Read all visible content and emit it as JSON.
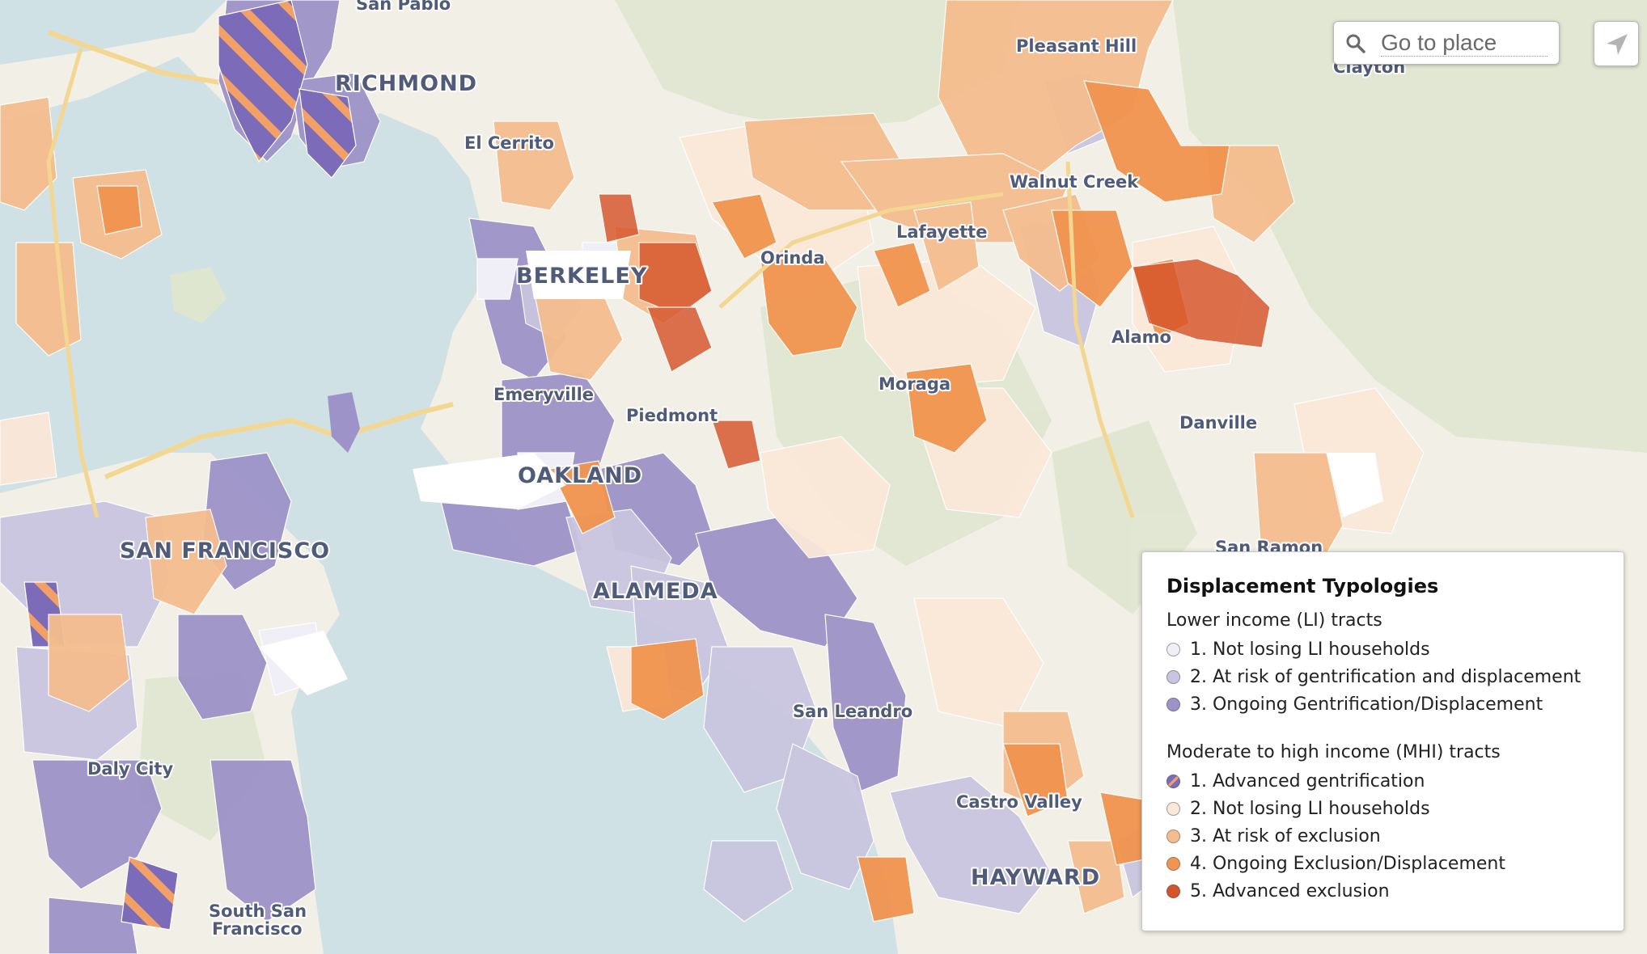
{
  "places": {
    "san_pablo": "San Pablo",
    "richmond": "RICHMOND",
    "el_cerrito": "El Cerrito",
    "berkeley": "BERKELEY",
    "emeryville": "Emeryville",
    "piedmont": "Piedmont",
    "oakland": "OAKLAND",
    "alameda": "ALAMEDA",
    "san_francisco": "SAN FRANCISCO",
    "daly_city": "Daly City",
    "south_san_francisco_line1": "South San",
    "south_san_francisco_line2": "Francisco",
    "san_leandro": "San Leandro",
    "castro_valley": "Castro Valley",
    "hayward": "HAYWARD",
    "orinda": "Orinda",
    "lafayette": "Lafayette",
    "moraga": "Moraga",
    "walnut_creek": "Walnut Creek",
    "pleasant_hill": "Pleasant Hill",
    "clayton": "Clayton",
    "alamo": "Alamo",
    "danville": "Danville",
    "san_ramon": "San Ramon"
  },
  "search": {
    "placeholder": "Go to place",
    "icon": "search-icon"
  },
  "locate_button": {
    "icon": "navigation-arrow-icon"
  },
  "legend": {
    "title": "Displacement Typologies",
    "groups": [
      {
        "title": "Lower income (LI) tracts",
        "items": [
          {
            "label": "1. Not losing LI households",
            "color": "#f0eef6"
          },
          {
            "label": "2. At risk of gentrification and displacement",
            "color": "#c9c5e0"
          },
          {
            "label": "3. Ongoing Gentrification/Displacement",
            "color": "#9d93c8"
          }
        ]
      },
      {
        "title": "Moderate to high income (MHI) tracts",
        "items": [
          {
            "label": "1. Advanced gentrification",
            "color": "#7b6bb8",
            "stripe": "#f2a066"
          },
          {
            "label": "2. Not losing LI households",
            "color": "#fbe8d8"
          },
          {
            "label": "3. At risk of exclusion",
            "color": "#f5bd8e"
          },
          {
            "label": "4. Ongoing Exclusion/Displacement",
            "color": "#f1944f"
          },
          {
            "label": "5. Advanced exclusion",
            "color": "#d6542a"
          }
        ]
      }
    ]
  }
}
